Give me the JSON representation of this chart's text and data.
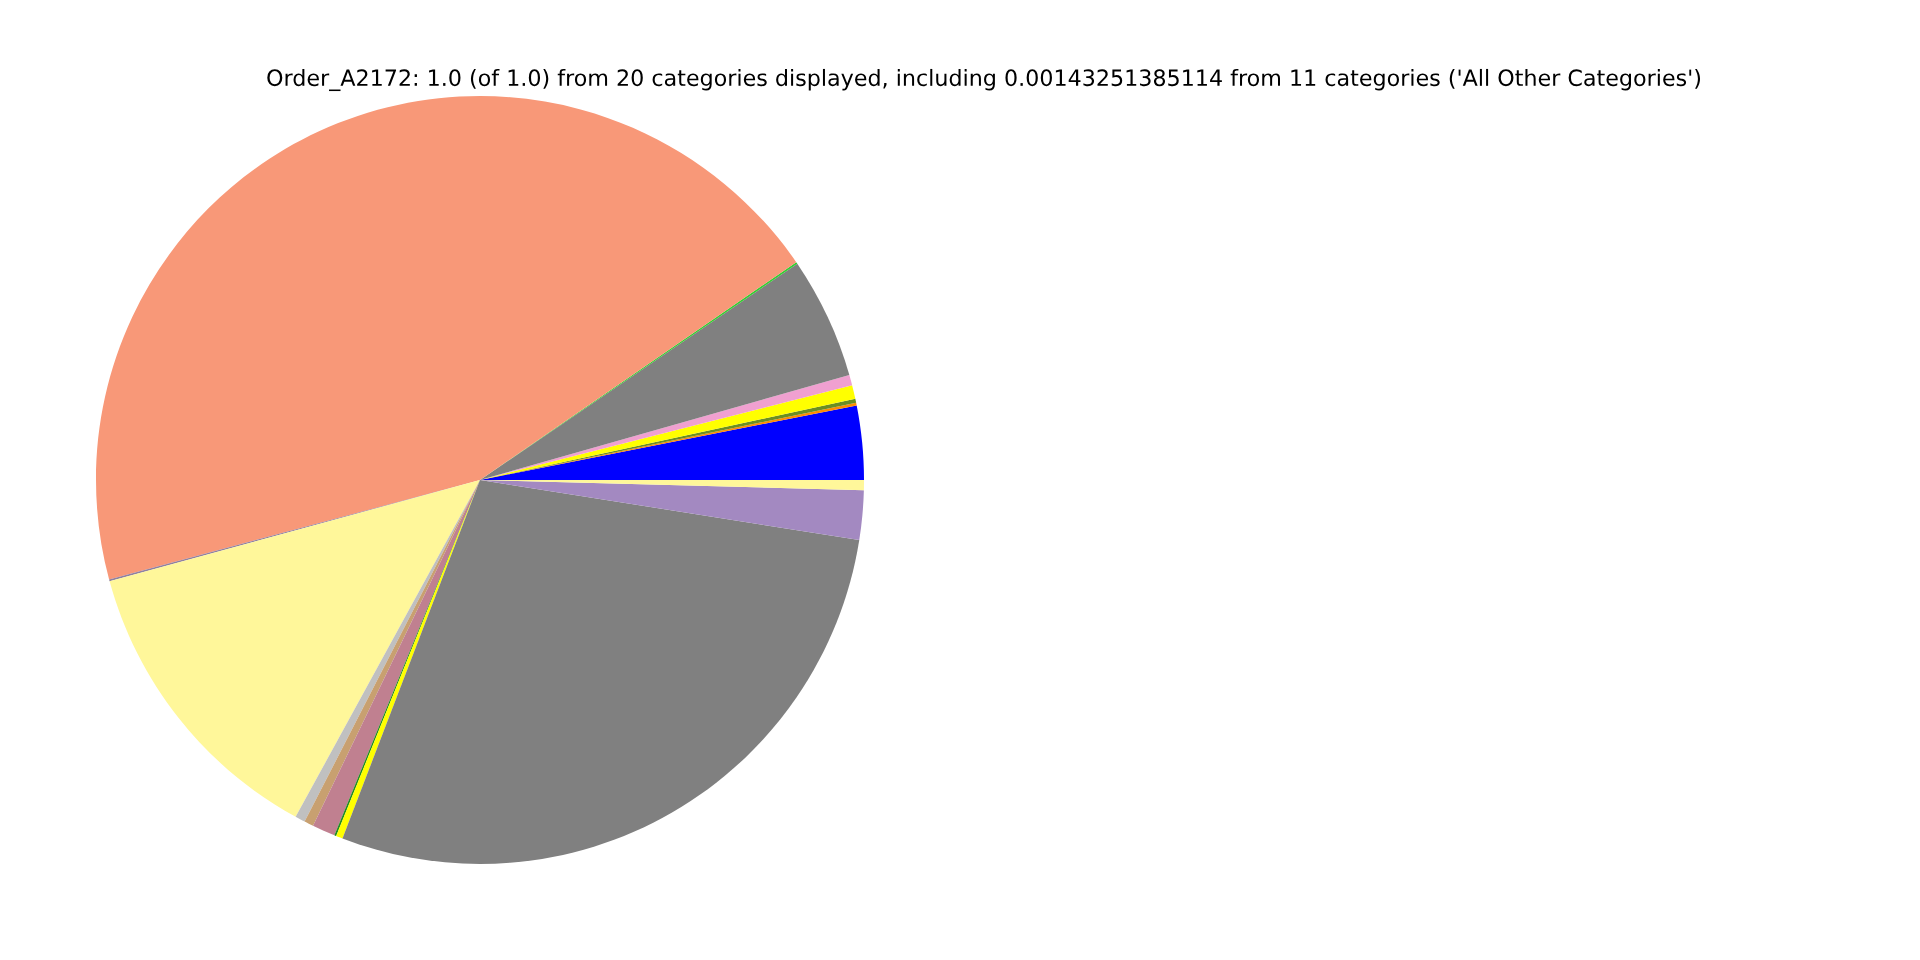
{
  "chart_data": {
    "type": "pie",
    "title": "Order_A2172: 1.0 (of 1.0) from 20 categories displayed, including 0.00143251385114 from 11 categories ('All Other Categories')",
    "categories": [
      null,
      null,
      null,
      null,
      null,
      null,
      null,
      null,
      null,
      null,
      null,
      null,
      null,
      null,
      null,
      null,
      null,
      null
    ],
    "values": [
      3.11,
      0.11,
      0.17,
      0.58,
      0.44,
      5.11,
      0.08,
      44.57,
      0.08,
      12.78,
      0.42,
      0.39,
      0.97,
      0.08,
      0.28,
      28.33,
      2.08,
      0.42
    ],
    "colors": [
      "#0000ff",
      "#ff8c00",
      "#6b8e23",
      "#ffff00",
      "#f0a0d0",
      "#808080",
      "#32cd32",
      "#f89878",
      "#9080a0",
      "#fff79a",
      "#c0c0c0",
      "#c8a070",
      "#c08090",
      "#228b22",
      "#ffff00",
      "#808080",
      "#a389c1",
      "#fff79a"
    ]
  }
}
